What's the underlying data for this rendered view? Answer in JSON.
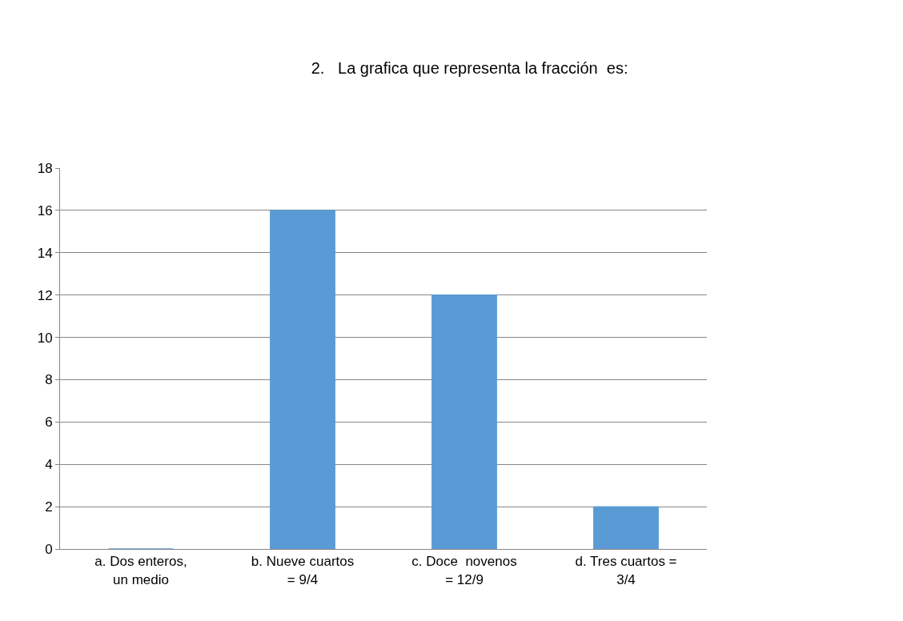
{
  "chart_data": {
    "type": "bar",
    "title": "2.   La grafica que representa la fracción  es:",
    "categories": [
      "a. Dos enteros, un medio",
      "b. Nueve cuartos = 9/4",
      "c. Doce  novenos = 12/9",
      "d. Tres cuartos = 3/4"
    ],
    "values": [
      0,
      16,
      12,
      2
    ],
    "color": "#5b9bd5",
    "ylim": [
      0,
      18
    ],
    "yticks": [
      0,
      2,
      4,
      6,
      8,
      10,
      12,
      14,
      16,
      18
    ],
    "grid": "y"
  }
}
